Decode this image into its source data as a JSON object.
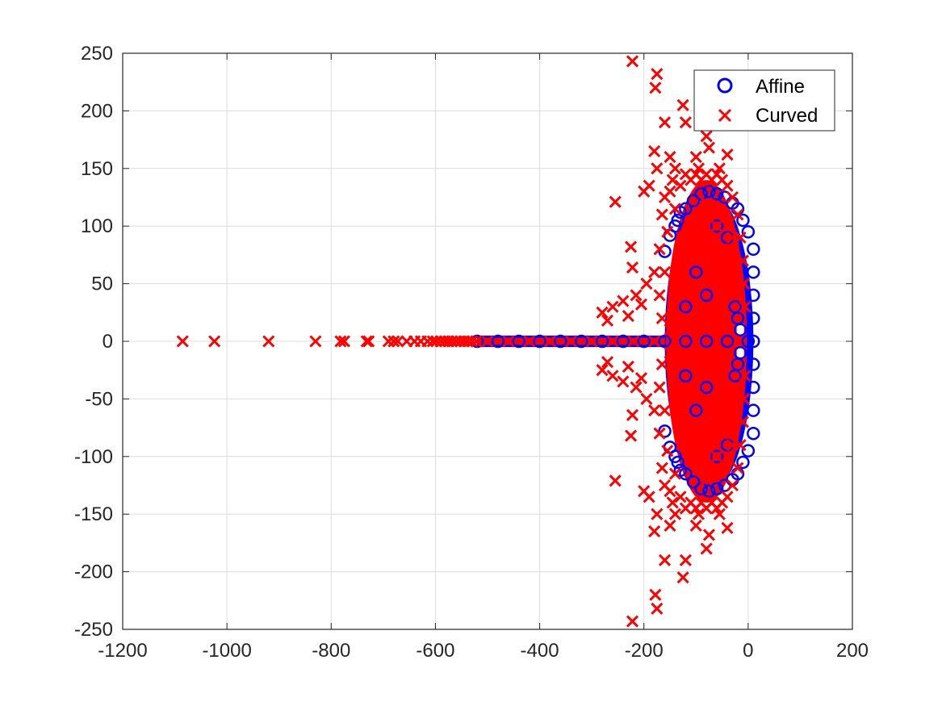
{
  "chart_data": {
    "type": "scatter",
    "title": "",
    "xlabel": "",
    "ylabel": "",
    "xlim": [
      -1200,
      200
    ],
    "ylim": [
      -250,
      250
    ],
    "xticks": [
      -1200,
      -1000,
      -800,
      -600,
      -400,
      -200,
      0,
      200
    ],
    "yticks": [
      -250,
      -200,
      -150,
      -100,
      -50,
      0,
      50,
      100,
      150,
      200,
      250
    ],
    "xtick_labels": [
      "-1200",
      "-1000",
      "-800",
      "-600",
      "-400",
      "-200",
      "0",
      "200"
    ],
    "ytick_labels": [
      "-250",
      "-200",
      "-150",
      "-100",
      "-50",
      "0",
      "50",
      "100",
      "150",
      "200",
      "250"
    ],
    "grid": true,
    "legend_position": "top-right",
    "series": [
      {
        "name": "Affine",
        "marker": "circle",
        "color": "#0000ff",
        "points": [
          [
            -520,
            0
          ],
          [
            -480,
            0
          ],
          [
            -440,
            0
          ],
          [
            -400,
            0
          ],
          [
            -360,
            0
          ],
          [
            -320,
            0
          ],
          [
            -280,
            0
          ],
          [
            -240,
            0
          ],
          [
            -200,
            0
          ],
          [
            -160,
            0
          ],
          [
            -120,
            0
          ],
          [
            -80,
            0
          ],
          [
            -40,
            0
          ],
          [
            0,
            0
          ],
          [
            10,
            0
          ],
          [
            10,
            80
          ],
          [
            10,
            60
          ],
          [
            10,
            40
          ],
          [
            10,
            20
          ],
          [
            10,
            -20
          ],
          [
            10,
            -40
          ],
          [
            10,
            -60
          ],
          [
            10,
            -80
          ],
          [
            0,
            95
          ],
          [
            -10,
            105
          ],
          [
            -20,
            115
          ],
          [
            -30,
            120
          ],
          [
            -45,
            125
          ],
          [
            -60,
            128
          ],
          [
            -75,
            130
          ],
          [
            -90,
            128
          ],
          [
            -105,
            122
          ],
          [
            -120,
            115
          ],
          [
            -135,
            105
          ],
          [
            -150,
            92
          ],
          [
            -160,
            78
          ],
          [
            0,
            -95
          ],
          [
            -10,
            -105
          ],
          [
            -20,
            -115
          ],
          [
            -30,
            -120
          ],
          [
            -45,
            -125
          ],
          [
            -60,
            -128
          ],
          [
            -75,
            -130
          ],
          [
            -90,
            -128
          ],
          [
            -105,
            -122
          ],
          [
            -120,
            -115
          ],
          [
            -135,
            -105
          ],
          [
            -150,
            -92
          ],
          [
            -160,
            -78
          ],
          [
            -130,
            112
          ],
          [
            -140,
            100
          ],
          [
            -130,
            -112
          ],
          [
            -140,
            -100
          ],
          [
            -60,
            100
          ],
          [
            -60,
            -100
          ],
          [
            -40,
            90
          ],
          [
            -40,
            -90
          ],
          [
            -25,
            30
          ],
          [
            -20,
            20
          ],
          [
            -15,
            10
          ],
          [
            -25,
            -30
          ],
          [
            -20,
            -20
          ],
          [
            -15,
            -10
          ],
          [
            -100,
            60
          ],
          [
            -100,
            -60
          ],
          [
            -80,
            40
          ],
          [
            -80,
            -40
          ],
          [
            -120,
            30
          ],
          [
            -120,
            -30
          ]
        ]
      },
      {
        "name": "Curved",
        "marker": "x",
        "color": "#ff0000",
        "points": [
          [
            -1085,
            0
          ],
          [
            -1024,
            0
          ],
          [
            -920,
            0
          ],
          [
            -830,
            0
          ],
          [
            -782,
            0
          ],
          [
            -775,
            0
          ],
          [
            -732,
            0
          ],
          [
            -728,
            0
          ],
          [
            -690,
            0
          ],
          [
            -680,
            0
          ],
          [
            -672,
            0
          ],
          [
            -655,
            0
          ],
          [
            -640,
            0
          ],
          [
            -628,
            0
          ],
          [
            -615,
            0
          ],
          [
            -605,
            0
          ],
          [
            -598,
            0
          ],
          [
            -590,
            0
          ],
          [
            -582,
            0
          ],
          [
            -575,
            0
          ],
          [
            -568,
            0
          ],
          [
            -560,
            0
          ],
          [
            -552,
            0
          ],
          [
            -545,
            0
          ],
          [
            -538,
            0
          ],
          [
            -530,
            0
          ],
          [
            -522,
            0
          ],
          [
            -500,
            0
          ],
          [
            -460,
            0
          ],
          [
            -420,
            0
          ],
          [
            -380,
            0
          ],
          [
            -340,
            0
          ],
          [
            -300,
            0
          ],
          [
            -260,
            0
          ],
          [
            -220,
            0
          ],
          [
            -180,
            0
          ],
          [
            -140,
            0
          ],
          [
            -222,
            243
          ],
          [
            -175,
            232
          ],
          [
            -178,
            220
          ],
          [
            -160,
            190
          ],
          [
            -125,
            205
          ],
          [
            -120,
            190
          ],
          [
            -80,
            178
          ],
          [
            -75,
            168
          ],
          [
            -40,
            162
          ],
          [
            -222,
            -243
          ],
          [
            -175,
            -232
          ],
          [
            -178,
            -220
          ],
          [
            -160,
            -190
          ],
          [
            -125,
            -205
          ],
          [
            -120,
            -190
          ],
          [
            -80,
            -180
          ],
          [
            -75,
            -168
          ],
          [
            -40,
            -162
          ],
          [
            -255,
            121
          ],
          [
            -225,
            82
          ],
          [
            -222,
            64
          ],
          [
            -200,
            130
          ],
          [
            -190,
            135
          ],
          [
            -180,
            165
          ],
          [
            -175,
            150
          ],
          [
            -150,
            160
          ],
          [
            -140,
            150
          ],
          [
            -100,
            160
          ],
          [
            -95,
            150
          ],
          [
            -55,
            150
          ],
          [
            -255,
            -121
          ],
          [
            -225,
            -82
          ],
          [
            -222,
            -64
          ],
          [
            -200,
            -130
          ],
          [
            -190,
            -135
          ],
          [
            -180,
            -165
          ],
          [
            -175,
            -150
          ],
          [
            -150,
            -160
          ],
          [
            -140,
            -150
          ],
          [
            -100,
            -160
          ],
          [
            -95,
            -150
          ],
          [
            -55,
            -150
          ],
          [
            -280,
            25
          ],
          [
            -270,
            18
          ],
          [
            -260,
            30
          ],
          [
            -240,
            35
          ],
          [
            -230,
            22
          ],
          [
            -215,
            40
          ],
          [
            -205,
            32
          ],
          [
            -195,
            50
          ],
          [
            -180,
            60
          ],
          [
            -280,
            -25
          ],
          [
            -270,
            -18
          ],
          [
            -260,
            -30
          ],
          [
            -240,
            -35
          ],
          [
            -230,
            -22
          ],
          [
            -215,
            -40
          ],
          [
            -205,
            -32
          ],
          [
            -195,
            -50
          ],
          [
            -180,
            -60
          ],
          [
            -170,
            80
          ],
          [
            -165,
            110
          ],
          [
            -160,
            125
          ],
          [
            -155,
            95
          ],
          [
            -150,
            130
          ],
          [
            -145,
            140
          ],
          [
            -140,
            115
          ],
          [
            -130,
            135
          ],
          [
            -120,
            145
          ],
          [
            -110,
            140
          ],
          [
            -100,
            145
          ],
          [
            -90,
            140
          ],
          [
            -80,
            145
          ],
          [
            -70,
            140
          ],
          [
            -60,
            145
          ],
          [
            -50,
            140
          ],
          [
            -40,
            135
          ],
          [
            -30,
            125
          ],
          [
            -20,
            110
          ],
          [
            -15,
            90
          ],
          [
            -10,
            70
          ],
          [
            -8,
            50
          ],
          [
            -6,
            30
          ],
          [
            -170,
            -80
          ],
          [
            -165,
            -110
          ],
          [
            -160,
            -125
          ],
          [
            -155,
            -95
          ],
          [
            -150,
            -130
          ],
          [
            -145,
            -140
          ],
          [
            -140,
            -115
          ],
          [
            -130,
            -135
          ],
          [
            -120,
            -145
          ],
          [
            -110,
            -140
          ],
          [
            -100,
            -145
          ],
          [
            -90,
            -140
          ],
          [
            -80,
            -145
          ],
          [
            -70,
            -140
          ],
          [
            -60,
            -145
          ],
          [
            -50,
            -140
          ],
          [
            -40,
            -135
          ],
          [
            -30,
            -125
          ],
          [
            -20,
            -110
          ],
          [
            -15,
            -90
          ],
          [
            -10,
            -70
          ],
          [
            -8,
            -50
          ],
          [
            -6,
            -30
          ],
          [
            -170,
            40
          ],
          [
            -165,
            20
          ],
          [
            -160,
            60
          ],
          [
            -150,
            10
          ],
          [
            -140,
            50
          ],
          [
            -130,
            80
          ],
          [
            -120,
            20
          ],
          [
            -110,
            100
          ],
          [
            -100,
            40
          ],
          [
            -90,
            90
          ],
          [
            -80,
            120
          ],
          [
            -70,
            60
          ],
          [
            -60,
            100
          ],
          [
            -50,
            80
          ],
          [
            -40,
            40
          ],
          [
            -30,
            90
          ],
          [
            -25,
            60
          ],
          [
            -170,
            -40
          ],
          [
            -165,
            -20
          ],
          [
            -160,
            -60
          ],
          [
            -150,
            -10
          ],
          [
            -140,
            -50
          ],
          [
            -130,
            -80
          ],
          [
            -120,
            -20
          ],
          [
            -110,
            -100
          ],
          [
            -100,
            -40
          ],
          [
            -90,
            -90
          ],
          [
            -80,
            -120
          ],
          [
            -70,
            -60
          ],
          [
            -60,
            -100
          ],
          [
            -50,
            -80
          ],
          [
            -40,
            -40
          ],
          [
            -30,
            -90
          ],
          [
            -25,
            -60
          ]
        ]
      }
    ]
  }
}
